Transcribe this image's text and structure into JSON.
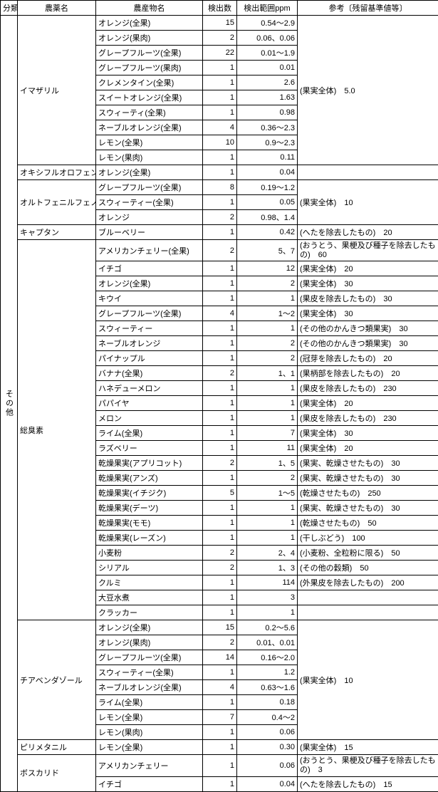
{
  "headers": {
    "category": "分類",
    "pesticide": "農薬名",
    "produce": "農産物名",
    "count": "検出数",
    "range": "検出範囲ppm",
    "reference": "参考〔残留基準値等〕"
  },
  "category_label": "その他",
  "groups": [
    {
      "pesticide": "イマザリル",
      "ref": "(果実全体)　5.0",
      "rows": [
        {
          "produce": "オレンジ(全果)",
          "count": "15",
          "range": "0.54～2.9"
        },
        {
          "produce": "オレンジ(果肉)",
          "count": "2",
          "range": "0.06、0.06"
        },
        {
          "produce": "グレープフルーツ(全果)",
          "count": "22",
          "range": "0.01～1.9"
        },
        {
          "produce": "グレープフルーツ(果肉)",
          "count": "1",
          "range": "0.01"
        },
        {
          "produce": "クレメンタイン(全果)",
          "count": "1",
          "range": "2.6"
        },
        {
          "produce": "スイートオレンジ(全果)",
          "count": "1",
          "range": "1.63"
        },
        {
          "produce": "スウィーティ(全果)",
          "count": "1",
          "range": "0.98"
        },
        {
          "produce": "ネーブルオレンジ(全果)",
          "count": "4",
          "range": "0.36～2.3"
        },
        {
          "produce": "レモン(全果)",
          "count": "10",
          "range": "0.9～2.3"
        },
        {
          "produce": "レモン(果肉)",
          "count": "1",
          "range": "0.11"
        }
      ]
    },
    {
      "pesticide": "オキシフルオロフェン",
      "rows": [
        {
          "produce": "オレンジ(全果)",
          "count": "1",
          "range": "0.04",
          "ref": ""
        }
      ]
    },
    {
      "pesticide": "オルトフェニルフェノール",
      "ref": "(果実全体)　10",
      "rows": [
        {
          "produce": "グレープフルーツ(全果)",
          "count": "8",
          "range": "0.19～1.2"
        },
        {
          "produce": "スウィーティー(全果)",
          "count": "1",
          "range": "0.05"
        },
        {
          "produce": "オレンジ",
          "count": "2",
          "range": "0.98、1.4"
        }
      ]
    },
    {
      "pesticide": "キャプタン",
      "rows": [
        {
          "produce": "ブルーベリー",
          "count": "1",
          "range": "0.42",
          "ref": "(へたを除去したもの)　20"
        }
      ]
    },
    {
      "pesticide": "総臭素",
      "rows": [
        {
          "produce": "アメリカンチェリー(全果)",
          "count": "2",
          "range": "5、7",
          "ref": "(おうとう、果梗及び種子を除去したもの)　60",
          "ref_wrap": true
        },
        {
          "produce": "イチゴ",
          "count": "1",
          "range": "12",
          "ref": "(果実全体)　20"
        },
        {
          "produce": "オレンジ(全果)",
          "count": "1",
          "range": "2",
          "ref": "(果実全体)　30"
        },
        {
          "produce": "キウイ",
          "count": "1",
          "range": "1",
          "ref": "(果皮を除去したもの)　30"
        },
        {
          "produce": "グレープフルーツ(全果)",
          "count": "4",
          "range": "1～2",
          "ref": "(果実全体)　30"
        },
        {
          "produce": "スウィーティー",
          "count": "1",
          "range": "1",
          "ref": "(その他のかんきつ類果実)　30"
        },
        {
          "produce": "ネーブルオレンジ",
          "count": "1",
          "range": "2",
          "ref": "(その他のかんきつ類果実)　30"
        },
        {
          "produce": "パイナップル",
          "count": "1",
          "range": "2",
          "ref": "(冠芽を除去したもの)　20"
        },
        {
          "produce": "バナナ(全果)",
          "count": "2",
          "range": "1、1",
          "ref": "(果柄部を除去したもの)　20"
        },
        {
          "produce": "ハネデューメロン",
          "count": "1",
          "range": "1",
          "ref": "(果皮を除去したもの)　230"
        },
        {
          "produce": "パパイヤ",
          "count": "1",
          "range": "1",
          "ref": "(果実全体)　20"
        },
        {
          "produce": "メロン",
          "count": "1",
          "range": "1",
          "ref": "(果皮を除去したもの)　230"
        },
        {
          "produce": "ライム(全果)",
          "count": "1",
          "range": "7",
          "ref": "(果実全体)　30"
        },
        {
          "produce": "ラズベリー",
          "count": "1",
          "range": "11",
          "ref": "(果実全体)　20"
        },
        {
          "produce": "乾燥果実(アプリコット)",
          "count": "2",
          "range": "1、5",
          "ref": "(果実、乾燥させたもの)　30"
        },
        {
          "produce": "乾燥果実(アンズ)",
          "count": "1",
          "range": "2",
          "ref": "(果実、乾燥させたもの)　30"
        },
        {
          "produce": "乾燥果実(イチジク)",
          "count": "5",
          "range": "1～5",
          "ref": "(乾燥させたもの)　250"
        },
        {
          "produce": "乾燥果実(デーツ)",
          "count": "1",
          "range": "1",
          "ref": "(果実、乾燥させたもの)　30"
        },
        {
          "produce": "乾燥果実(モモ)",
          "count": "1",
          "range": "1",
          "ref": "(乾燥させたもの)　50"
        },
        {
          "produce": "乾燥果実(レーズン)",
          "count": "1",
          "range": "1",
          "ref": "(干しぶどう)　100"
        },
        {
          "produce": "小麦粉",
          "count": "2",
          "range": "2、4",
          "ref": "(小麦粉、全粒粉に限る)　50"
        },
        {
          "produce": "シリアル",
          "count": "2",
          "range": "1、3",
          "ref": "(その他の穀類)　50"
        },
        {
          "produce": "クルミ",
          "count": "1",
          "range": "114",
          "ref": "(外果皮を除去したもの)　200"
        },
        {
          "produce": "大豆水煮",
          "count": "1",
          "range": "3",
          "ref": ""
        },
        {
          "produce": "クラッカー",
          "count": "1",
          "range": "1",
          "ref": ""
        }
      ]
    },
    {
      "pesticide": "チアベンダゾール",
      "ref": "(果実全体)　10",
      "rows": [
        {
          "produce": "オレンジ(全果)",
          "count": "15",
          "range": "0.2～5.6"
        },
        {
          "produce": "オレンジ(果肉)",
          "count": "2",
          "range": "0.01、0.01"
        },
        {
          "produce": "グレープフルーツ(全果)",
          "count": "14",
          "range": "0.16～2.0"
        },
        {
          "produce": "スウィーティー(全果)",
          "count": "1",
          "range": "1.2"
        },
        {
          "produce": "ネーブルオレンジ(全果)",
          "count": "4",
          "range": "0.63～1.6"
        },
        {
          "produce": "ライム(全果)",
          "count": "1",
          "range": "0.18"
        },
        {
          "produce": "レモン(全果)",
          "count": "7",
          "range": "0.4～2"
        },
        {
          "produce": "レモン(果肉)",
          "count": "1",
          "range": "0.06"
        }
      ]
    },
    {
      "pesticide": "ピリメタニル",
      "rows": [
        {
          "produce": "レモン(全果)",
          "count": "1",
          "range": "0.30",
          "ref": "(果実全体)　15"
        }
      ]
    },
    {
      "pesticide": "ボスカリド",
      "rows": [
        {
          "produce": "アメリカンチェリー",
          "count": "1",
          "range": "0.06",
          "ref": "(おうとう、果梗及び種子を除去したもの)　3",
          "ref_wrap": true
        },
        {
          "produce": "イチゴ",
          "count": "1",
          "range": "0.04",
          "ref": "(へたを除去したもの)　15"
        }
      ]
    }
  ]
}
